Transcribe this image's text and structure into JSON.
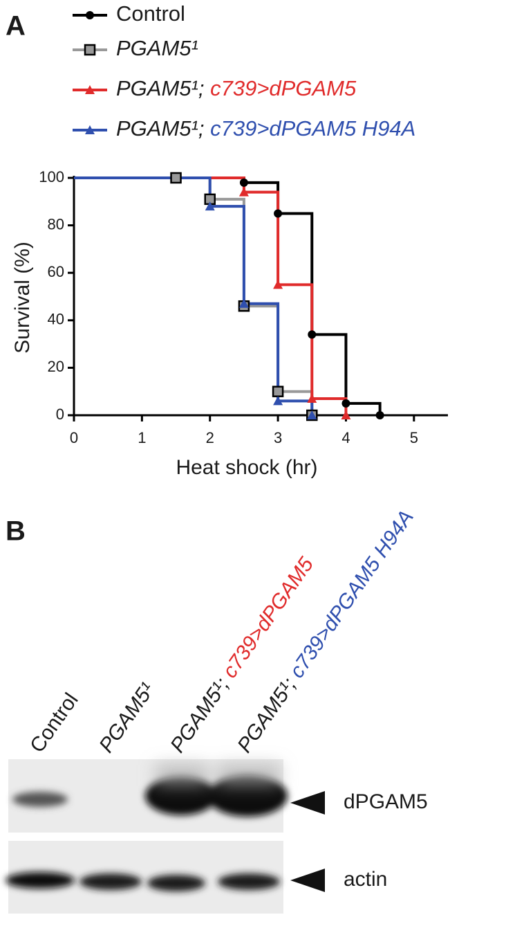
{
  "chart_data": {
    "type": "line",
    "drawstyle": "steps-post",
    "panel_label": "A",
    "xlabel": "Heat shock (hr)",
    "ylabel": "Survival (%)",
    "xlim": [
      0,
      5.5
    ],
    "xticks": [
      0,
      1,
      2,
      3,
      4,
      5
    ],
    "ylim": [
      0,
      100
    ],
    "yticks": [
      0,
      20,
      40,
      60,
      80,
      100
    ],
    "series": [
      {
        "name": "Control",
        "color": "#000000",
        "marker": "circle",
        "x": [
          0,
          2.5,
          3,
          3.5,
          4,
          4.5
        ],
        "values": [
          100,
          98,
          85,
          34,
          5,
          0
        ]
      },
      {
        "name": "PGAM5¹",
        "color": "#999999",
        "marker": "square",
        "x": [
          0,
          1.5,
          2,
          2.5,
          3,
          3.5
        ],
        "values": [
          100,
          100,
          91,
          46,
          10,
          0
        ]
      },
      {
        "name": "PGAM5¹; c739>dPGAM5",
        "color": "#e02b2b",
        "marker": "triangle",
        "x": [
          0,
          2.5,
          3,
          3.5,
          4
        ],
        "values": [
          100,
          94,
          55,
          7,
          0
        ]
      },
      {
        "name": "PGAM5¹; c739>dPGAM5 H94A",
        "color": "#2f4fae",
        "marker": "triangle",
        "x": [
          0,
          2,
          2.5,
          3,
          3.5
        ],
        "values": [
          100,
          88,
          47,
          6,
          0
        ]
      }
    ]
  },
  "blot": {
    "panel_label": "B",
    "lanes": [
      "Control",
      "PGAM5¹",
      "PGAM5¹; c739>dPGAM5",
      "PGAM5¹; c739>dPGAM5 H94A"
    ],
    "bands": [
      "dPGAM5",
      "actin"
    ]
  }
}
